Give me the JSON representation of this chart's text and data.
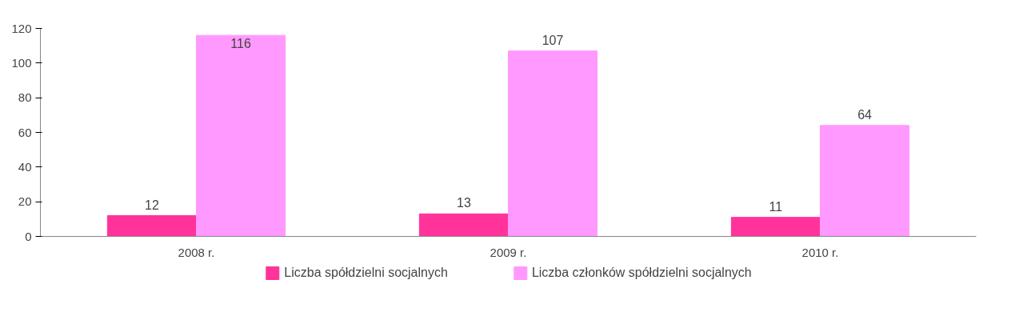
{
  "chart_data": {
    "type": "bar",
    "categories": [
      "2008 r.",
      "2009 r.",
      "2010 r."
    ],
    "series": [
      {
        "name": "Liczba spółdzielni socjalnych",
        "color": "#ff3399",
        "values": [
          12,
          13,
          11
        ]
      },
      {
        "name": "Liczba członków spółdzielni socjalnych",
        "color": "#ff99ff",
        "values": [
          116,
          107,
          64
        ]
      }
    ],
    "ylim": [
      0,
      120
    ],
    "yticks": [
      0,
      20,
      40,
      60,
      80,
      100,
      120
    ],
    "data_labels": true,
    "legend": "bottom",
    "grid": false
  }
}
